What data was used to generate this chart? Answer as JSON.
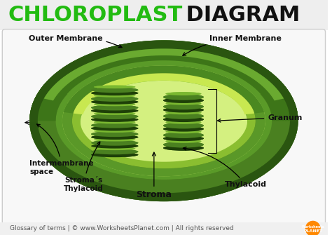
{
  "title_chloroplast": "CHLOROPLAST",
  "title_diagram": " DIAGRAM",
  "title_chloroplast_color": "#22bb11",
  "title_diagram_color": "#111111",
  "title_fontsize": 22,
  "bg_color": "#ffffff",
  "header_bg": "#eeeeee",
  "diagram_bg": "#f8f8f8",
  "footer_text": "Glossary of terms | © www.WorksheetsPlanet.com | All rights reserved",
  "footer_fontsize": 6.5,
  "outer_dark": "#2d5a10",
  "outer_mid": "#4a8020",
  "outer_light": "#6ab030",
  "inner_dark": "#3d7018",
  "inner_mid": "#5a9028",
  "stroma_light": "#c8e870",
  "stroma_mid": "#a8d840",
  "granum_dark": "#2d5010",
  "granum_mid": "#4a8020",
  "granum_light": "#6aaa30"
}
